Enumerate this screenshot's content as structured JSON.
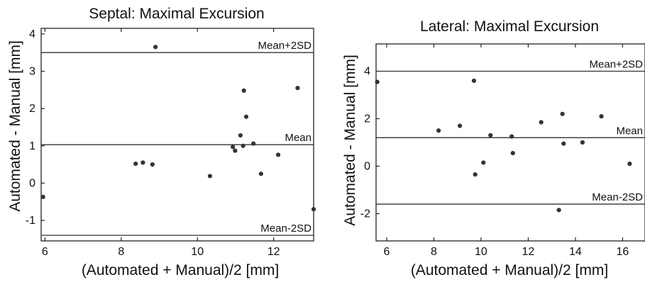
{
  "chart_data": [
    {
      "type": "scatter",
      "title": "Septal: Maximal Excursion",
      "xlabel": "(Automated + Manual)/2  [mm]",
      "ylabel": "Automated - Manual [mm]",
      "xlim": [
        5.9,
        13.05
      ],
      "ylim": [
        -1.55,
        4.15
      ],
      "xticks": [
        6,
        8,
        10,
        12
      ],
      "yticks": [
        -1,
        0,
        1,
        2,
        3,
        4
      ],
      "reference_lines": [
        {
          "label": "Mean+2SD",
          "y": 3.5
        },
        {
          "label": "Mean",
          "y": 1.03
        },
        {
          "label": "Mean-2SD",
          "y": -1.4
        }
      ],
      "points": [
        {
          "x": 5.95,
          "y": -0.37
        },
        {
          "x": 8.38,
          "y": 0.52
        },
        {
          "x": 8.57,
          "y": 0.55
        },
        {
          "x": 8.82,
          "y": 0.5
        },
        {
          "x": 8.9,
          "y": 3.65
        },
        {
          "x": 10.33,
          "y": 0.19
        },
        {
          "x": 10.93,
          "y": 0.97
        },
        {
          "x": 10.99,
          "y": 0.87
        },
        {
          "x": 11.13,
          "y": 1.28
        },
        {
          "x": 11.2,
          "y": 1.0
        },
        {
          "x": 11.22,
          "y": 2.48
        },
        {
          "x": 11.28,
          "y": 1.78
        },
        {
          "x": 11.47,
          "y": 1.06
        },
        {
          "x": 11.67,
          "y": 0.25
        },
        {
          "x": 12.12,
          "y": 0.76
        },
        {
          "x": 12.63,
          "y": 2.55
        },
        {
          "x": 13.05,
          "y": -0.7
        }
      ]
    },
    {
      "type": "scatter",
      "title": "Lateral: Maximal Excursion",
      "xlabel": "(Automated + Manual)/2  [mm]",
      "ylabel": "Automated - Manual [mm]",
      "xlim": [
        5.55,
        16.95
      ],
      "ylim": [
        -3.15,
        5.15
      ],
      "xticks": [
        6,
        8,
        10,
        12,
        14,
        16
      ],
      "yticks": [
        -2,
        0,
        2,
        4
      ],
      "reference_lines": [
        {
          "label": "Mean+2SD",
          "y": 4.0
        },
        {
          "label": "Mean",
          "y": 1.2
        },
        {
          "label": "Mean-2SD",
          "y": -1.6
        }
      ],
      "points": [
        {
          "x": 5.6,
          "y": 3.55
        },
        {
          "x": 8.2,
          "y": 1.5
        },
        {
          "x": 9.1,
          "y": 1.7
        },
        {
          "x": 9.7,
          "y": 3.6
        },
        {
          "x": 9.75,
          "y": -0.35
        },
        {
          "x": 10.1,
          "y": 0.15
        },
        {
          "x": 10.4,
          "y": 1.3
        },
        {
          "x": 11.3,
          "y": 1.25
        },
        {
          "x": 11.35,
          "y": 0.55
        },
        {
          "x": 12.55,
          "y": 1.85
        },
        {
          "x": 13.3,
          "y": -1.85
        },
        {
          "x": 13.45,
          "y": 2.2
        },
        {
          "x": 13.5,
          "y": 0.95
        },
        {
          "x": 14.3,
          "y": 1.0
        },
        {
          "x": 15.1,
          "y": 2.1
        },
        {
          "x": 16.3,
          "y": 0.1
        }
      ]
    }
  ]
}
